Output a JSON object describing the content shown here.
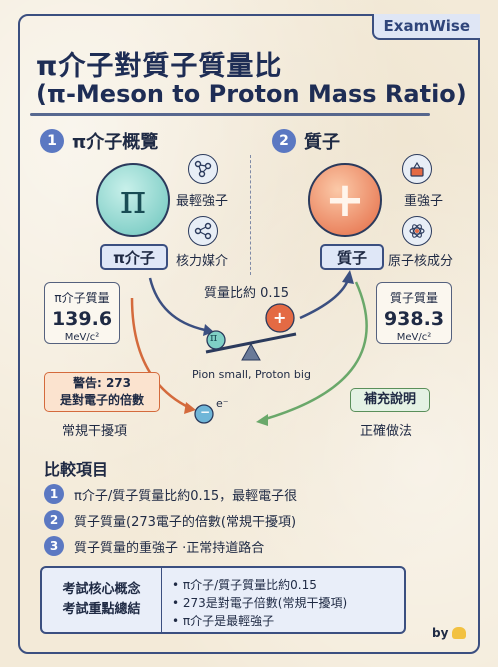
{
  "brand": "ExamWise",
  "title_zh": "π介子對質子質量比",
  "title_en": "(π-Meson to Proton Mass Ratio)",
  "section1": {
    "num": "1",
    "title": "π介子概覽",
    "symbol": "π",
    "label": "π介子",
    "features": [
      "最輕強子",
      "核力媒介"
    ],
    "mass_key": "π介子質量",
    "mass_value": "139.6",
    "mass_unit": "MeV/c²"
  },
  "section2": {
    "num": "2",
    "title": "質子",
    "symbol": "+",
    "label": "質子",
    "features": [
      "重強子",
      "原子核成分"
    ],
    "mass_key": "質子質量",
    "mass_value": "938.3",
    "mass_unit": "MeV/c²"
  },
  "center": {
    "ratio_label": "質量比約 0.15",
    "caption": "Pion small, Proton big",
    "pi_symbol": "π",
    "proton_symbol": "+",
    "electron_symbol": "−",
    "electron_sup": "e⁻"
  },
  "warning": {
    "line1": "警告: 273",
    "line2": "是對電子的倍數",
    "sub": "常規干擾項"
  },
  "note": {
    "label": "補充說明",
    "sub": "正確做法"
  },
  "compare": {
    "title": "比較項目",
    "items": [
      {
        "num": "1",
        "text": "π介子/質子質量比約0.15，最輕電子很"
      },
      {
        "num": "2",
        "text": "質子質量(273電子的倍數(常規干擾項)"
      },
      {
        "num": "3",
        "text": "質子質量的重強子 ·正常持道路合"
      }
    ]
  },
  "summary": {
    "left1": "考試核心概念",
    "left2": "考試重點總結",
    "points": [
      "π介子/質子質量比約0.15",
      "273是對電子倍數(常規干擾項)",
      "π介子是最輕強子"
    ]
  },
  "byline": "by",
  "colors": {
    "accent": "#3b4f80",
    "pion": "#6cc5bd",
    "proton": "#e46a44",
    "warning": "#d46a3c",
    "note": "#5a8f5a"
  }
}
